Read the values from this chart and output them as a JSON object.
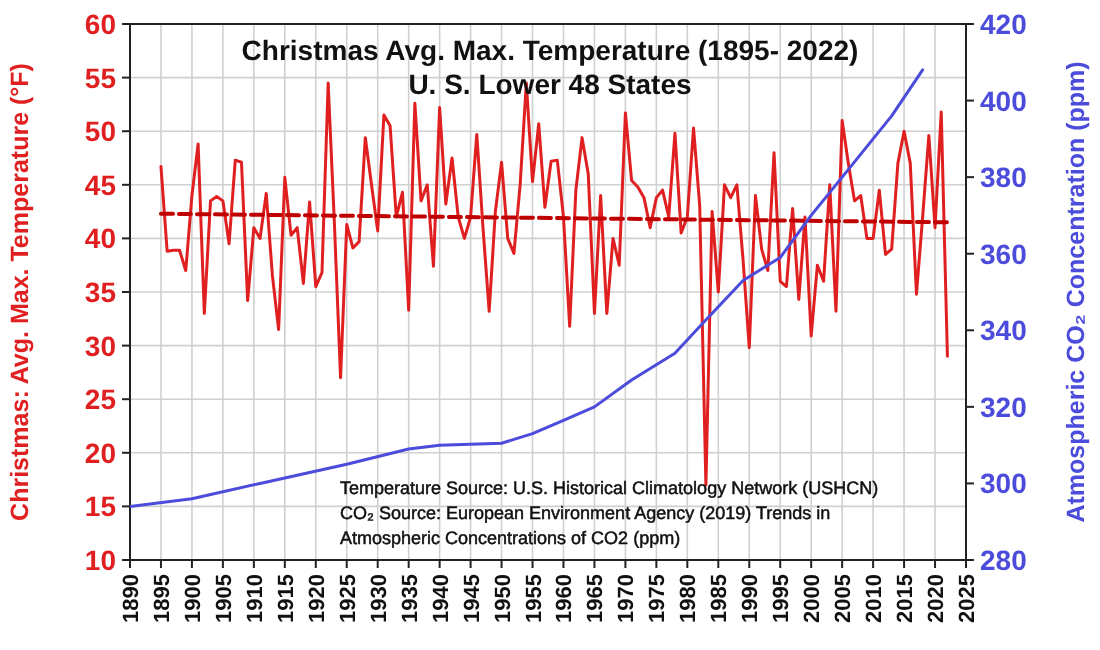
{
  "chart_data": {
    "type": "line",
    "title": "Christmas Avg. Max. Temperature (1895- 2022)",
    "subtitle": "U. S. Lower 48 States",
    "ylabel": "Christmas: Avg. Max. Temperature (°F)",
    "y2label": "Atmospheric CO₂ Concentration (ppm)",
    "annotations": [
      "Temperature Source:  U.S. Historical Climatology Network (USHCN)",
      "CO₂ Source: European Environment Agency (2019)  Trends in",
      "Atmospheric Concentrations of CO2 (ppm)"
    ],
    "xlim": [
      1890,
      2025
    ],
    "xticks": [
      1890,
      1895,
      1900,
      1905,
      1910,
      1915,
      1920,
      1925,
      1930,
      1935,
      1940,
      1945,
      1950,
      1955,
      1960,
      1965,
      1970,
      1975,
      1980,
      1985,
      1990,
      1995,
      2000,
      2005,
      2010,
      2015,
      2020,
      2025
    ],
    "ylim": [
      10,
      60
    ],
    "yticks": [
      10,
      15,
      20,
      25,
      30,
      35,
      40,
      45,
      50,
      55,
      60
    ],
    "y2lim": [
      280,
      420
    ],
    "y2ticks": [
      280,
      300,
      320,
      340,
      360,
      380,
      400,
      420
    ],
    "grid": true,
    "marker": "none",
    "series": [
      {
        "color": "#e02020",
        "x": [
          1895,
          1896,
          1897,
          1898,
          1899,
          1900,
          1901,
          1902,
          1903,
          1904,
          1905,
          1906,
          1907,
          1908,
          1909,
          1910,
          1911,
          1912,
          1913,
          1914,
          1915,
          1916,
          1917,
          1918,
          1919,
          1920,
          1921,
          1922,
          1923,
          1924,
          1925,
          1926,
          1927,
          1928,
          1929,
          1930,
          1931,
          1932,
          1933,
          1934,
          1935,
          1936,
          1937,
          1938,
          1939,
          1940,
          1941,
          1942,
          1943,
          1944,
          1945,
          1946,
          1947,
          1948,
          1949,
          1950,
          1951,
          1952,
          1953,
          1954,
          1955,
          1956,
          1957,
          1958,
          1959,
          1960,
          1961,
          1962,
          1963,
          1964,
          1965,
          1966,
          1967,
          1968,
          1969,
          1970,
          1971,
          1972,
          1973,
          1974,
          1975,
          1976,
          1977,
          1978,
          1979,
          1980,
          1981,
          1982,
          1983,
          1984,
          1985,
          1986,
          1987,
          1988,
          1989,
          1990,
          1991,
          1992,
          1993,
          1994,
          1995,
          1996,
          1997,
          1998,
          1999,
          2000,
          2001,
          2002,
          2003,
          2004,
          2005,
          2006,
          2007,
          2008,
          2009,
          2010,
          2011,
          2012,
          2013,
          2014,
          2015,
          2016,
          2017,
          2018,
          2019,
          2020,
          2021,
          2022
        ],
        "values": [
          46.7,
          38.8,
          38.9,
          38.9,
          37.0,
          44.0,
          48.8,
          33.0,
          43.5,
          43.9,
          43.5,
          39.5,
          47.3,
          47.1,
          34.2,
          41.0,
          40.0,
          44.2,
          36.5,
          31.5,
          45.7,
          40.3,
          41.0,
          35.8,
          43.4,
          35.5,
          36.8,
          54.5,
          41.5,
          27.0,
          41.3,
          39.1,
          39.7,
          49.4,
          45.0,
          40.7,
          51.5,
          50.5,
          42.0,
          44.3,
          33.3,
          52.6,
          43.5,
          45.0,
          37.4,
          52.2,
          43.2,
          47.5,
          42.0,
          40.0,
          42.0,
          49.7,
          41.0,
          33.2,
          42.5,
          47.1,
          40.0,
          38.6,
          45.0,
          54.5,
          45.3,
          50.7,
          42.9,
          47.2,
          47.3,
          42.0,
          31.8,
          44.5,
          49.4,
          46.0,
          33.0,
          44.0,
          33.0,
          40.0,
          37.5,
          51.7,
          45.4,
          44.8,
          43.8,
          41.0,
          43.8,
          44.5,
          42.0,
          49.8,
          40.5,
          42.0,
          50.3,
          43.0,
          17.0,
          42.5,
          35.0,
          45.0,
          43.8,
          45.0,
          38.0,
          29.8,
          44.0,
          39.0,
          37.0,
          48.0,
          36.0,
          35.5,
          42.8,
          34.3,
          42.0,
          30.9,
          37.5,
          36.0,
          45.0,
          33.2,
          51.0,
          47.0,
          43.5,
          44.0,
          40.0,
          40.0,
          44.5,
          38.5,
          39.0,
          47.0,
          50.0,
          47.0,
          34.8,
          42.0,
          49.6,
          41.0,
          51.8,
          29.0
        ]
      },
      {
        "color": "#c00000",
        "line_style": "dashed",
        "x": [
          1895,
          2022
        ],
        "values": [
          42.3,
          41.5
        ]
      },
      {
        "color": "#4b4bdc",
        "axis": "y2",
        "x": [
          1890,
          1900,
          1911,
          1925,
          1935,
          1940,
          1950,
          1955,
          1960,
          1965,
          1971,
          1978,
          1982,
          1989,
          1995,
          2000,
          2007,
          2013,
          2018
        ],
        "values": [
          294,
          296,
          300,
          305,
          309,
          310,
          310.5,
          313,
          316.5,
          320,
          327,
          334,
          341,
          353,
          359,
          370,
          384,
          396,
          408
        ]
      }
    ]
  }
}
